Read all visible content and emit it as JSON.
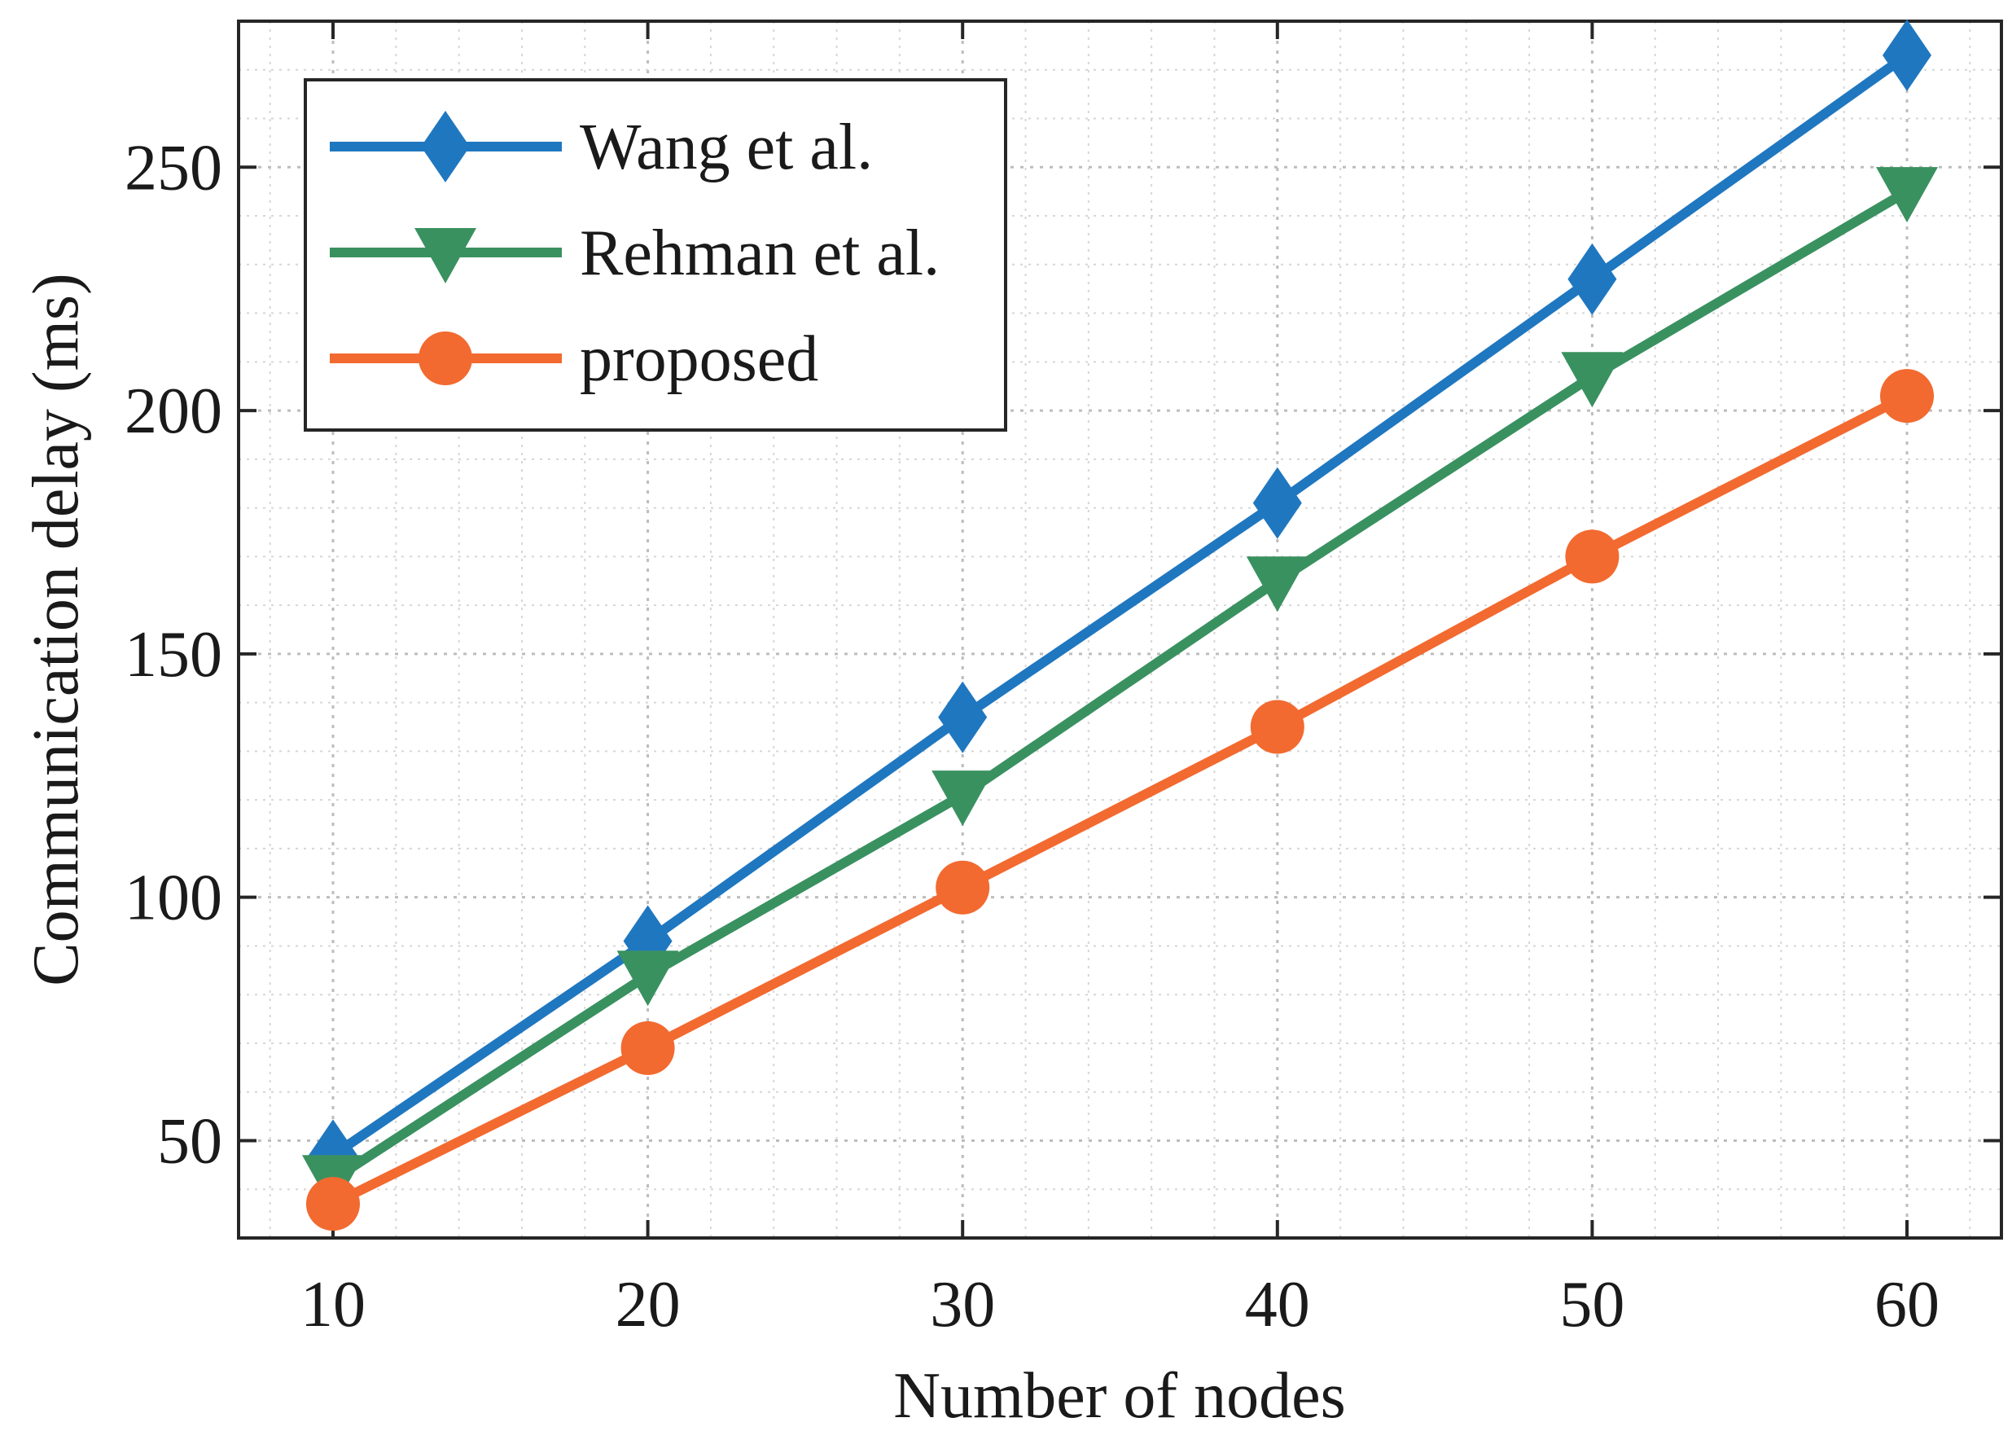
{
  "chart_data": {
    "type": "line",
    "title": "",
    "xlabel": "Number of  nodes",
    "ylabel": "Communication delay (ms)",
    "x": [
      10,
      20,
      30,
      40,
      50,
      60
    ],
    "xlim": [
      7,
      63
    ],
    "ylim": [
      30,
      280
    ],
    "xticks": [
      10,
      20,
      30,
      40,
      50,
      60
    ],
    "yticks": [
      50,
      100,
      150,
      200,
      250
    ],
    "grid": "on (dotted, with minor grid)",
    "legend_position": "top-left",
    "series": [
      {
        "name": "Wang et al.",
        "color": "#1f77c0",
        "marker": "diamond",
        "values": [
          47,
          91,
          137,
          181,
          227,
          273
        ]
      },
      {
        "name": "Rehman et al.",
        "color": "#3a9160",
        "marker": "triangle-down",
        "values": [
          42,
          84,
          121,
          165,
          207,
          245
        ]
      },
      {
        "name": "proposed",
        "color": "#f26a30",
        "marker": "circle",
        "values": [
          37,
          69,
          102,
          135,
          170,
          203
        ]
      }
    ]
  }
}
